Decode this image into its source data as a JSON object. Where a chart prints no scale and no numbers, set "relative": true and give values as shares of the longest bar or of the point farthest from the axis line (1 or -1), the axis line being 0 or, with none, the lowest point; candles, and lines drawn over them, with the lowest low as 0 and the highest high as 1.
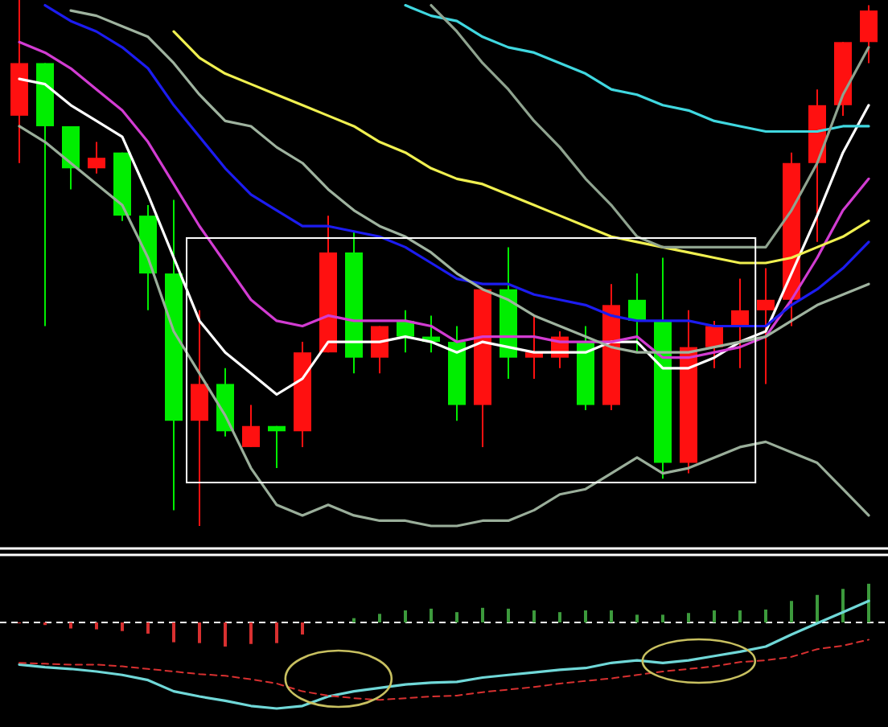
{
  "chart_data": [
    {
      "type": "candlestick",
      "relative": true,
      "categories": [
        null,
        null,
        null,
        null,
        null,
        null,
        null,
        null,
        null,
        null,
        null,
        null,
        null,
        null,
        null,
        null,
        null,
        null,
        null,
        null,
        null,
        null,
        null,
        null,
        null,
        null,
        null,
        null,
        null,
        null,
        null,
        null,
        null,
        null
      ],
      "ohlc": [
        [
          0.78,
          1,
          0.69,
          0.88
        ],
        [
          0.88,
          0.88,
          0.38,
          0.76
        ],
        [
          0.76,
          0.76,
          0.64,
          0.68
        ],
        [
          0.68,
          0.73,
          0.67,
          0.7
        ],
        [
          0.71,
          0.71,
          0.58,
          0.59
        ],
        [
          0.59,
          0.61,
          0.41,
          0.48
        ],
        [
          0.48,
          0.62,
          0.03,
          0.2
        ],
        [
          0.2,
          0.41,
          0,
          0.27
        ],
        [
          0.27,
          0.3,
          0.17,
          0.18
        ],
        [
          0.15,
          0.23,
          0.15,
          0.19
        ],
        [
          0.19,
          0.19,
          0.11,
          0.18
        ],
        [
          0.18,
          0.35,
          0.15,
          0.33
        ],
        [
          0.33,
          0.59,
          0.33,
          0.52
        ],
        [
          0.52,
          0.56,
          0.29,
          0.32
        ],
        [
          0.32,
          0.38,
          0.29,
          0.38
        ],
        [
          0.39,
          0.41,
          0.33,
          0.36
        ],
        [
          0.36,
          0.4,
          0.33,
          0.35
        ],
        [
          0.35,
          0.38,
          0.2,
          0.23
        ],
        [
          0.23,
          0.45,
          0.15,
          0.45
        ],
        [
          0.45,
          0.53,
          0.28,
          0.32
        ],
        [
          0.32,
          0.4,
          0.28,
          0.33
        ],
        [
          0.32,
          0.37,
          0.3,
          0.36
        ],
        [
          0.35,
          0.38,
          0.22,
          0.23
        ],
        [
          0.23,
          0.46,
          0.22,
          0.42
        ],
        [
          0.43,
          0.48,
          0.33,
          0.39
        ],
        [
          0.39,
          0.51,
          0.09,
          0.12
        ],
        [
          0.12,
          0.41,
          0.1,
          0.34
        ],
        [
          0.34,
          0.39,
          0.3,
          0.38
        ],
        [
          0.38,
          0.47,
          0.3,
          0.41
        ],
        [
          0.41,
          0.49,
          0.27,
          0.43
        ],
        [
          0.43,
          0.71,
          0.38,
          0.69
        ],
        [
          0.69,
          0.83,
          0.54,
          0.8
        ],
        [
          0.8,
          0.92,
          0.78,
          0.92
        ],
        [
          0.92,
          0.99,
          0.88,
          0.98
        ]
      ],
      "colors": [
        "#ff1010",
        "#00ee00",
        "#00ee00",
        "#ff1010",
        "#00ee00",
        "#00ee00",
        "#00ee00",
        "#ff1010",
        "#00ee00",
        "#ff1010",
        "#00ee00",
        "#ff1010",
        "#ff1010",
        "#00ee00",
        "#ff1010",
        "#00ee00",
        "#00ee00",
        "#00ee00",
        "#ff1010",
        "#00ee00",
        "#ff1010",
        "#ff1010",
        "#00ee00",
        "#ff1010",
        "#00ee00",
        "#00ee00",
        "#ff1010",
        "#ff1010",
        "#ff1010",
        "#ff1010",
        "#ff1010",
        "#ff1010",
        "#ff1010",
        "#ff1010"
      ],
      "series": [
        {
          "type": "line",
          "color": "#ffffff",
          "values": [
            0.85,
            0.84,
            0.8,
            0.77,
            0.74,
            0.63,
            0.51,
            0.39,
            0.33,
            0.29,
            0.25,
            0.28,
            0.35,
            0.35,
            0.35,
            0.36,
            0.35,
            0.33,
            0.35,
            0.34,
            0.33,
            0.33,
            0.33,
            0.35,
            0.35,
            0.3,
            0.3,
            0.32,
            0.35,
            0.37,
            0.48,
            0.59,
            0.71,
            0.8
          ]
        },
        {
          "type": "line",
          "color": "#d23cd2",
          "values": [
            0.92,
            0.9,
            0.87,
            0.83,
            0.79,
            0.73,
            0.65,
            0.57,
            0.5,
            0.43,
            0.39,
            0.38,
            0.4,
            0.39,
            0.39,
            0.39,
            0.38,
            0.35,
            0.36,
            0.36,
            0.36,
            0.35,
            0.35,
            0.35,
            0.36,
            0.32,
            0.32,
            0.33,
            0.34,
            0.36,
            0.43,
            0.51,
            0.6,
            0.66
          ]
        },
        {
          "type": "line",
          "color": "#1c1cf0",
          "values": [
            null,
            0.99,
            0.96,
            0.94,
            0.91,
            0.87,
            0.8,
            0.74,
            0.68,
            0.63,
            0.6,
            0.57,
            0.57,
            0.56,
            0.55,
            0.53,
            0.5,
            0.47,
            0.46,
            0.46,
            0.44,
            0.43,
            0.42,
            0.4,
            0.39,
            0.39,
            0.39,
            0.38,
            0.38,
            0.38,
            0.42,
            0.45,
            0.49,
            0.54
          ]
        },
        {
          "type": "line",
          "color": "#f0f050",
          "values": [
            null,
            null,
            null,
            null,
            null,
            null,
            0.94,
            0.89,
            0.86,
            0.84,
            0.82,
            0.8,
            0.78,
            0.76,
            0.73,
            0.71,
            0.68,
            0.66,
            0.65,
            0.63,
            0.61,
            0.59,
            0.57,
            0.55,
            0.54,
            0.53,
            0.52,
            0.51,
            0.5,
            0.5,
            0.51,
            0.53,
            0.55,
            0.58
          ]
        },
        {
          "type": "line",
          "color": "#40d8e0",
          "values": [
            null,
            null,
            null,
            null,
            null,
            null,
            null,
            null,
            null,
            null,
            null,
            null,
            null,
            null,
            null,
            0.99,
            0.97,
            0.96,
            0.93,
            0.91,
            0.9,
            0.88,
            0.86,
            0.83,
            0.82,
            0.8,
            0.79,
            0.77,
            0.76,
            0.75,
            0.75,
            0.75,
            0.76,
            0.76
          ]
        },
        {
          "type": "line",
          "color": "#9fb39f",
          "values": [
            null,
            null,
            0.98,
            0.97,
            0.95,
            0.93,
            0.88,
            0.82,
            0.77,
            0.76,
            0.72,
            0.69,
            0.64,
            0.6,
            0.57,
            0.55,
            0.52,
            0.48,
            0.45,
            0.43,
            0.4,
            0.38,
            0.36,
            0.34,
            0.33,
            0.33,
            0.33,
            0.34,
            0.35,
            0.36,
            0.39,
            0.42,
            0.44,
            0.46
          ]
        },
        {
          "type": "line",
          "color": "#8fa38f",
          "values": [
            null,
            null,
            null,
            null,
            null,
            null,
            null,
            null,
            null,
            null,
            null,
            null,
            null,
            null,
            null,
            null,
            0.99,
            0.94,
            0.88,
            0.83,
            0.77,
            0.72,
            0.66,
            0.61,
            0.55,
            0.53,
            0.53,
            0.53,
            0.53,
            0.53,
            0.6,
            0.69,
            0.82,
            0.91
          ]
        },
        {
          "type": "line",
          "color": "#9aae9a",
          "values": [
            0.76,
            0.73,
            0.69,
            0.65,
            0.61,
            0.51,
            0.37,
            0.29,
            0.21,
            0.11,
            0.04,
            0.02,
            0.04,
            0.02,
            0.01,
            0.01,
            0,
            0,
            0.01,
            0.01,
            0.03,
            0.06,
            0.07,
            0.1,
            0.13,
            0.1,
            0.11,
            0.13,
            0.15,
            0.16,
            0.14,
            0.12,
            0.07,
            0.02
          ]
        }
      ]
    },
    {
      "type": "bar",
      "relative": true,
      "ref_lines": [
        {
          "axis": "y",
          "value": 0,
          "color": "#ffffff",
          "line_style": "dashed"
        }
      ],
      "categories": [
        null,
        null,
        null,
        null,
        null,
        null,
        null,
        null,
        null,
        null,
        null,
        null,
        null,
        null,
        null,
        null,
        null,
        null,
        null,
        null,
        null,
        null,
        null,
        null,
        null,
        null,
        null,
        null,
        null,
        null,
        null,
        null,
        null,
        null
      ],
      "series": [
        {
          "type": "bar",
          "colors": [
            "#d83030",
            "#d83030",
            "#d83030",
            "#d83030",
            "#d83030",
            "#d83030",
            "#d83030",
            "#d83030",
            "#d83030",
            "#d83030",
            "#d83030",
            "#d83030",
            "#3c9a3c",
            "#3c9a3c",
            "#3c9a3c",
            "#3c9a3c",
            "#3c9a3c",
            "#3c9a3c",
            "#3c9a3c",
            "#3c9a3c",
            "#3c9a3c",
            "#3c9a3c",
            "#3c9a3c",
            "#3c9a3c",
            "#3c9a3c",
            "#3c9a3c",
            "#3c9a3c",
            "#3c9a3c",
            "#3c9a3c",
            "#3c9a3c",
            "#3c9a3c",
            "#3c9a3c",
            "#3c9a3c",
            "#3c9a3c"
          ],
          "values": [
            -0.01,
            -0.03,
            -0.07,
            -0.08,
            -0.1,
            -0.13,
            -0.23,
            -0.24,
            -0.28,
            -0.25,
            -0.24,
            -0.14,
            0,
            0.05,
            0.1,
            0.14,
            0.16,
            0.12,
            0.17,
            0.16,
            0.14,
            0.12,
            0.14,
            0.14,
            0.09,
            0.09,
            0.11,
            0.14,
            0.14,
            0.15,
            0.25,
            0.32,
            0.39,
            0.45
          ]
        },
        {
          "type": "line",
          "color": "#70d8d8",
          "values": [
            -0.49,
            -0.52,
            -0.54,
            -0.57,
            -0.61,
            -0.67,
            -0.8,
            -0.86,
            -0.91,
            -0.97,
            -1,
            -0.97,
            -0.86,
            -0.8,
            -0.76,
            -0.72,
            -0.7,
            -0.69,
            -0.64,
            -0.61,
            -0.58,
            -0.55,
            -0.53,
            -0.47,
            -0.44,
            -0.47,
            -0.44,
            -0.39,
            -0.34,
            -0.28,
            -0.14,
            -0.01,
            0.12,
            0.25
          ]
        },
        {
          "type": "line",
          "color": "#d83030",
          "line_style": "dashed",
          "values": [
            -0.47,
            -0.48,
            -0.49,
            -0.49,
            -0.51,
            -0.54,
            -0.57,
            -0.6,
            -0.62,
            -0.66,
            -0.71,
            -0.8,
            -0.85,
            -0.88,
            -0.9,
            -0.88,
            -0.86,
            -0.85,
            -0.81,
            -0.78,
            -0.75,
            -0.71,
            -0.68,
            -0.65,
            -0.61,
            -0.57,
            -0.54,
            -0.51,
            -0.46,
            -0.44,
            -0.4,
            -0.31,
            -0.27,
            -0.2
          ]
        }
      ]
    }
  ]
}
